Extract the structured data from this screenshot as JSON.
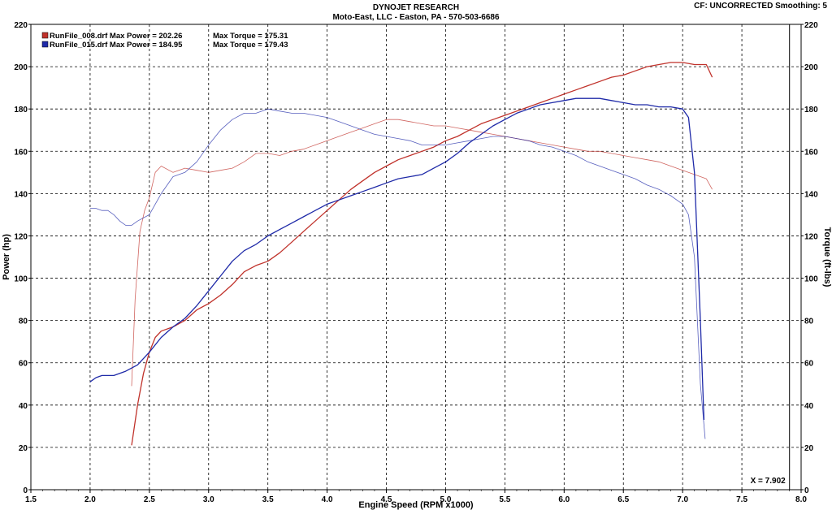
{
  "header": {
    "title": "DYNOJET RESEARCH",
    "subtitle": "Moto-East, LLC - Easton, PA - 570-503-6686",
    "cf": "CF: UNCORRECTED  Smoothing: 5"
  },
  "colors": {
    "run008": "#c0322b",
    "run015": "#1f2aa8",
    "grid": "#000000"
  },
  "chart_data": {
    "type": "line",
    "xlabel": "Engine Speed (RPM x1000)",
    "ylabel": "Power (hp)",
    "y2label": "Torque (ft-lbs)",
    "xlim": [
      1.5,
      8.0
    ],
    "ylim": [
      0,
      220
    ],
    "y2lim": [
      0,
      220
    ],
    "xticks": [
      "1.5",
      "2.0",
      "2.5",
      "3.0",
      "3.5",
      "4.0",
      "4.5",
      "5.0",
      "5.5",
      "6.0",
      "6.5",
      "7.0",
      "7.5",
      "8.0"
    ],
    "yticks": [
      "0",
      "20",
      "40",
      "60",
      "80",
      "100",
      "120",
      "140",
      "160",
      "180",
      "200",
      "220"
    ],
    "grid": true,
    "legend": [
      {
        "file": "RunFile_008.drf",
        "power_label": "Max Power = 202.26",
        "torque_label": "Max Torque = 175.31",
        "color": "#c0322b"
      },
      {
        "file": "RunFile_015.drf",
        "power_label": "Max Power = 184.95",
        "torque_label": "Max Torque = 179.43",
        "color": "#1f2aa8"
      }
    ],
    "cursor_label": "X = 7.902",
    "cursor_x": 7.902,
    "series": [
      {
        "name": "RunFile_008.drf",
        "kind": "power",
        "color": "#c0322b",
        "x": [
          2.35,
          2.4,
          2.45,
          2.5,
          2.55,
          2.6,
          2.7,
          2.8,
          2.9,
          3.0,
          3.1,
          3.2,
          3.3,
          3.4,
          3.5,
          3.6,
          3.7,
          3.8,
          3.9,
          4.0,
          4.1,
          4.2,
          4.3,
          4.4,
          4.5,
          4.6,
          4.7,
          4.8,
          4.9,
          5.0,
          5.1,
          5.2,
          5.3,
          5.4,
          5.5,
          5.6,
          5.7,
          5.8,
          5.9,
          6.0,
          6.1,
          6.2,
          6.3,
          6.4,
          6.5,
          6.6,
          6.7,
          6.8,
          6.9,
          7.0,
          7.1,
          7.2,
          7.25
        ],
        "y": [
          21,
          40,
          55,
          65,
          72,
          75,
          77,
          80,
          85,
          88,
          92,
          97,
          103,
          106,
          108,
          112,
          117,
          122,
          127,
          132,
          137,
          142,
          146,
          150,
          153,
          156,
          158,
          160,
          162,
          165,
          167,
          170,
          173,
          175,
          177,
          179,
          181,
          183,
          185,
          187,
          189,
          191,
          193,
          195,
          196,
          198,
          200,
          201,
          202,
          202,
          201,
          201,
          195
        ]
      },
      {
        "name": "RunFile_008.drf",
        "kind": "torque",
        "color": "#c0322b",
        "x": [
          2.35,
          2.38,
          2.42,
          2.46,
          2.5,
          2.55,
          2.6,
          2.7,
          2.8,
          2.9,
          3.0,
          3.1,
          3.2,
          3.3,
          3.4,
          3.5,
          3.6,
          3.7,
          3.8,
          3.9,
          4.0,
          4.1,
          4.2,
          4.3,
          4.4,
          4.5,
          4.6,
          4.7,
          4.8,
          4.9,
          5.0,
          5.1,
          5.2,
          5.3,
          5.4,
          5.5,
          5.6,
          5.7,
          5.8,
          5.9,
          6.0,
          6.1,
          6.2,
          6.3,
          6.4,
          6.5,
          6.6,
          6.7,
          6.8,
          6.9,
          7.0,
          7.1,
          7.2,
          7.25
        ],
        "y": [
          49,
          90,
          122,
          132,
          138,
          150,
          153,
          150,
          152,
          151,
          150,
          151,
          152,
          155,
          159,
          159,
          158,
          160,
          161,
          163,
          165,
          167,
          169,
          171,
          173,
          175,
          175,
          174,
          173,
          172,
          172,
          171,
          170,
          169,
          168,
          167,
          166,
          165,
          164,
          163,
          162,
          161,
          160,
          160,
          159,
          158,
          157,
          156,
          155,
          153,
          151,
          149,
          147,
          142
        ]
      },
      {
        "name": "RunFile_015.drf",
        "kind": "power",
        "color": "#1f2aa8",
        "x": [
          2.0,
          2.05,
          2.1,
          2.2,
          2.3,
          2.4,
          2.5,
          2.6,
          2.7,
          2.8,
          2.9,
          3.0,
          3.1,
          3.2,
          3.3,
          3.4,
          3.5,
          3.6,
          3.7,
          3.8,
          3.9,
          4.0,
          4.1,
          4.2,
          4.3,
          4.4,
          4.5,
          4.6,
          4.7,
          4.8,
          4.9,
          5.0,
          5.1,
          5.2,
          5.3,
          5.4,
          5.5,
          5.6,
          5.7,
          5.8,
          5.9,
          6.0,
          6.1,
          6.2,
          6.3,
          6.4,
          6.5,
          6.6,
          6.7,
          6.8,
          6.9,
          7.0,
          7.05,
          7.1,
          7.15,
          7.18
        ],
        "y": [
          51,
          53,
          54,
          54,
          56,
          59,
          65,
          72,
          77,
          81,
          87,
          94,
          101,
          108,
          113,
          116,
          120,
          123,
          126,
          129,
          132,
          135,
          137,
          139,
          141,
          143,
          145,
          147,
          148,
          149,
          152,
          155,
          159,
          164,
          168,
          172,
          175,
          178,
          180,
          182,
          183,
          184,
          185,
          185,
          185,
          184,
          183,
          182,
          182,
          181,
          181,
          180,
          176,
          150,
          80,
          33
        ]
      },
      {
        "name": "RunFile_015.drf",
        "kind": "torque",
        "color": "#1f2aa8",
        "x": [
          2.0,
          2.05,
          2.1,
          2.15,
          2.2,
          2.25,
          2.3,
          2.35,
          2.4,
          2.5,
          2.6,
          2.7,
          2.8,
          2.9,
          3.0,
          3.1,
          3.2,
          3.3,
          3.4,
          3.5,
          3.6,
          3.7,
          3.8,
          3.9,
          4.0,
          4.1,
          4.2,
          4.3,
          4.4,
          4.5,
          4.6,
          4.7,
          4.8,
          4.9,
          5.0,
          5.1,
          5.2,
          5.3,
          5.4,
          5.5,
          5.6,
          5.7,
          5.8,
          5.9,
          6.0,
          6.1,
          6.2,
          6.3,
          6.4,
          6.5,
          6.6,
          6.7,
          6.8,
          6.9,
          7.0,
          7.05,
          7.1,
          7.15,
          7.19
        ],
        "y": [
          133,
          133,
          132,
          132,
          130,
          127,
          125,
          125,
          127,
          130,
          140,
          148,
          150,
          155,
          163,
          170,
          175,
          178,
          178,
          180,
          179,
          178,
          178,
          177,
          176,
          174,
          172,
          170,
          168,
          167,
          166,
          165,
          163,
          163,
          163,
          164,
          165,
          166,
          167,
          167,
          166,
          165,
          163,
          162,
          160,
          158,
          155,
          153,
          151,
          149,
          147,
          144,
          142,
          139,
          135,
          130,
          110,
          50,
          24
        ]
      }
    ]
  }
}
